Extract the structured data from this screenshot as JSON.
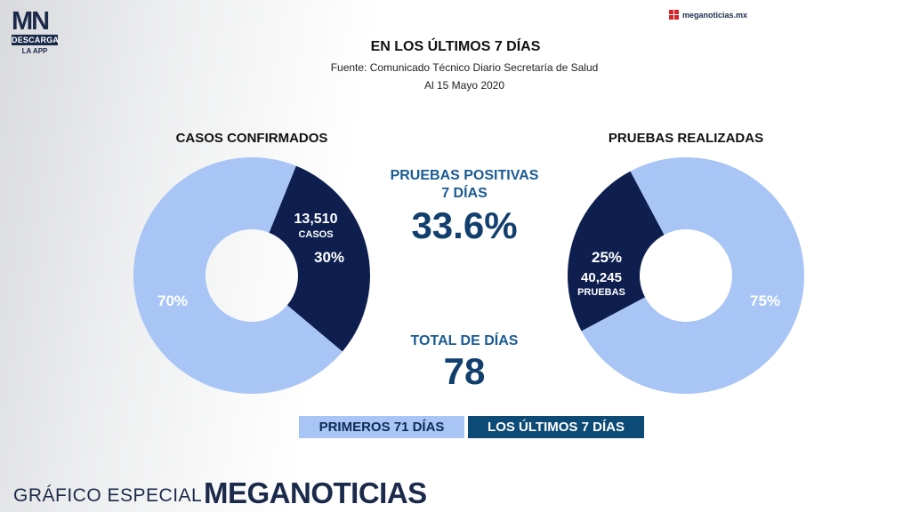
{
  "logo": {
    "letters_m": "M",
    "letters_n": "N",
    "badge": "DESCARGA",
    "sub": "LA APP"
  },
  "site": {
    "label": "meganoticias.mx"
  },
  "header": {
    "title": "EN LOS ÚLTIMOS 7 DÍAS",
    "source": "Fuente: Comunicado Técnico Diario Secretaría de Salud",
    "date": "Al 15 Mayo 2020"
  },
  "colors": {
    "light": "#a8c5f5",
    "dark": "#0e1f4f",
    "accent_text": "#1a5b93",
    "legend_dark": "#0d4a76"
  },
  "chart_data": [
    {
      "type": "pie",
      "title": "CASOS CONFIRMADOS",
      "donut": true,
      "slices": [
        {
          "label": "LOS ÚLTIMOS 7 DÍAS",
          "value": 30,
          "display": "30%",
          "count": "13,510",
          "unit": "CASOS"
        },
        {
          "label": "PRIMEROS 71 DÍAS",
          "value": 70,
          "display": "70%"
        }
      ]
    },
    {
      "type": "pie",
      "title": "PRUEBAS REALIZADAS",
      "donut": true,
      "slices": [
        {
          "label": "LOS ÚLTIMOS 7 DÍAS",
          "value": 25,
          "display": "25%",
          "count": "40,245",
          "unit": "PRUEBAS"
        },
        {
          "label": "PRIMEROS 71 DÍAS",
          "value": 75,
          "display": "75%"
        }
      ]
    }
  ],
  "stats": {
    "positive_label_1": "PRUEBAS POSITIVAS",
    "positive_label_2": "7 DÍAS",
    "positive_value": "33.6%",
    "days_label": "TOTAL DE DÍAS",
    "days_value": "78"
  },
  "legend": {
    "first": "PRIMEROS 71 DÍAS",
    "last": "LOS ÚLTIMOS 7 DÍAS"
  },
  "footer": {
    "text": "GRÁFICO ESPECIAL",
    "brand": "MEGANOTICIAS"
  }
}
